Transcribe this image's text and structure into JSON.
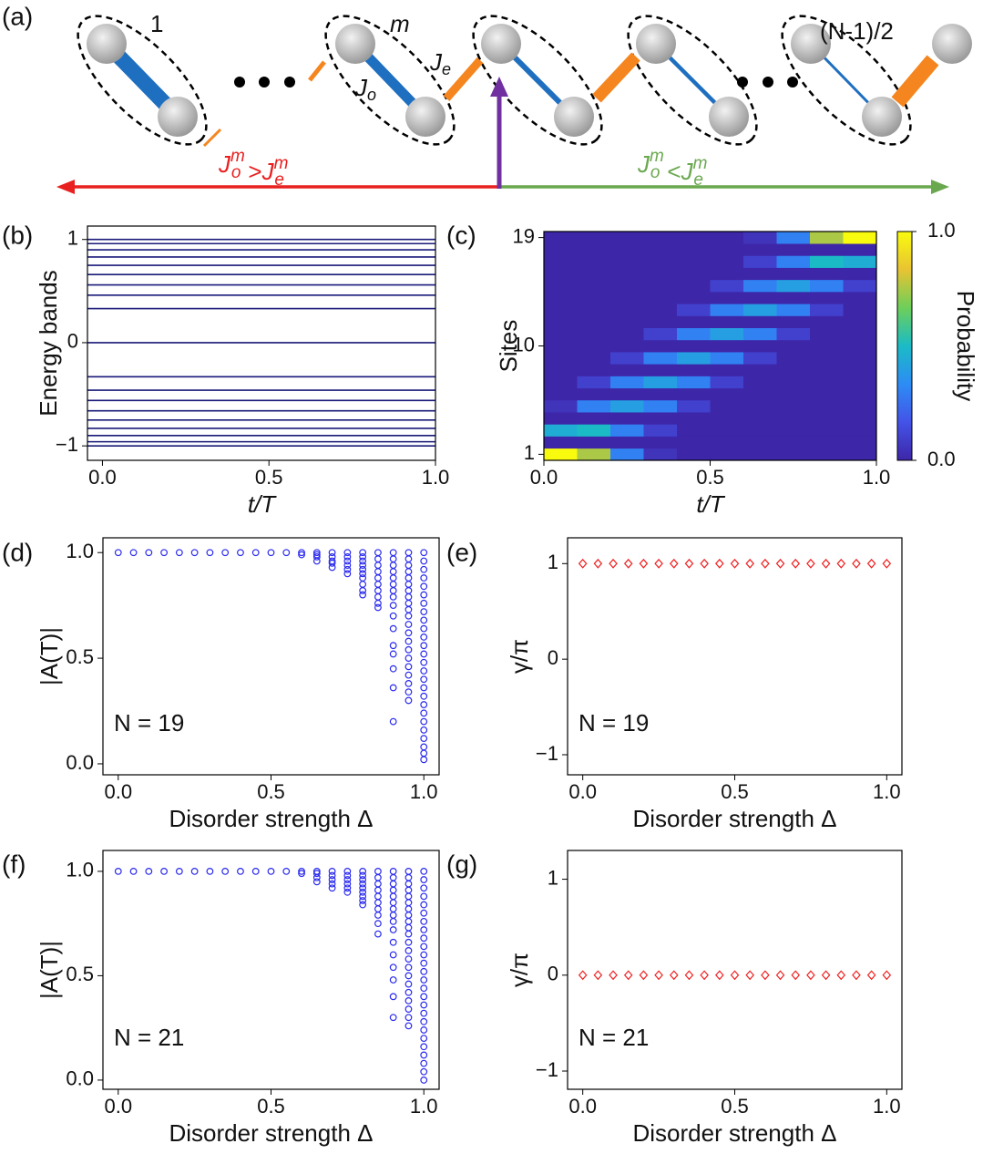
{
  "diagram": {
    "label": "(a)",
    "site_first": "1",
    "site_m": "m",
    "site_last": "(N-1)/2",
    "je": {
      "base": "J",
      "sub": "e"
    },
    "jo": {
      "base": "J",
      "sub": "o"
    },
    "relations": [
      {
        "left": {
          "base": "J",
          "sup": "m",
          "sub": "o"
        },
        "op": ">",
        "right": {
          "base": "J",
          "sup": "m",
          "sub": "e"
        },
        "color": "#e8201f"
      },
      {
        "left": {
          "base": "J",
          "sup": "m",
          "sub": "o"
        },
        "op": "<",
        "right": {
          "base": "J",
          "sup": "m",
          "sub": "e"
        },
        "color": "#6aa84f"
      }
    ]
  },
  "chart_data": [
    {
      "type": "hline",
      "label": "(b)",
      "xlabel": "t/T",
      "ylabel": "Energy bands",
      "color": "#1a1a7a",
      "values": [
        1.0,
        0.96,
        0.9,
        0.83,
        0.75,
        0.66,
        0.56,
        0.46,
        0.33,
        0,
        -0.33,
        -0.46,
        -0.56,
        -0.66,
        -0.75,
        -0.83,
        -0.9,
        -0.96,
        -1.0
      ],
      "xlim": [
        -0.045,
        1.0
      ],
      "xticks": [
        {
          "value": 0,
          "label": "0.0"
        },
        {
          "value": 0.5,
          "label": "0.5"
        },
        {
          "value": 1,
          "label": "1.0"
        }
      ],
      "ylim": [
        -1.14,
        1.13
      ],
      "yticks": [
        {
          "value": -1,
          "label": "−1"
        },
        0,
        1
      ]
    },
    {
      "type": "heatmap",
      "label": "(c)",
      "xlabel": "t/T",
      "ylabel": "Sites",
      "clabel": "Probability",
      "colormap": [
        "#3e26a8",
        "#4353e8",
        "#2d8cf5",
        "#1bbbc6",
        "#6dcf5a",
        "#e8c332",
        "#f9fb0e"
      ],
      "clim": [
        0,
        1
      ],
      "cticks": [
        {
          "value": 0,
          "label": "0.0"
        },
        {
          "value": 1,
          "label": "1.0"
        }
      ],
      "xlim": [
        0,
        1
      ],
      "xticks": [
        {
          "value": 0,
          "label": "0.0"
        },
        {
          "value": 0.5,
          "label": "0.5"
        },
        {
          "value": 1,
          "label": "1.0"
        }
      ],
      "ylim": [
        0.5,
        19.5
      ],
      "yticks": [
        1,
        10,
        19
      ],
      "z": [
        [
          1.0,
          0.75,
          0.3,
          0.05,
          0,
          0,
          0,
          0,
          0,
          0
        ],
        [
          0,
          0,
          0,
          0,
          0,
          0,
          0,
          0,
          0,
          0
        ],
        [
          0.45,
          0.5,
          0.3,
          0.1,
          0,
          0,
          0,
          0,
          0,
          0
        ],
        [
          0,
          0,
          0,
          0,
          0,
          0,
          0,
          0,
          0,
          0
        ],
        [
          0.05,
          0.3,
          0.4,
          0.3,
          0.1,
          0,
          0,
          0,
          0,
          0
        ],
        [
          0,
          0,
          0,
          0,
          0,
          0,
          0,
          0,
          0,
          0
        ],
        [
          0,
          0.1,
          0.3,
          0.4,
          0.3,
          0.1,
          0,
          0,
          0,
          0
        ],
        [
          0,
          0,
          0,
          0,
          0,
          0,
          0,
          0,
          0,
          0
        ],
        [
          0,
          0,
          0.1,
          0.3,
          0.4,
          0.3,
          0.1,
          0,
          0,
          0
        ],
        [
          0,
          0,
          0,
          0,
          0,
          0,
          0,
          0,
          0,
          0
        ],
        [
          0,
          0,
          0,
          0.1,
          0.3,
          0.4,
          0.3,
          0.1,
          0,
          0
        ],
        [
          0,
          0,
          0,
          0,
          0,
          0,
          0,
          0,
          0,
          0
        ],
        [
          0,
          0,
          0,
          0,
          0.1,
          0.3,
          0.4,
          0.3,
          0.1,
          0
        ],
        [
          0,
          0,
          0,
          0,
          0,
          0,
          0,
          0,
          0,
          0
        ],
        [
          0,
          0,
          0,
          0,
          0,
          0.1,
          0.3,
          0.4,
          0.3,
          0.1
        ],
        [
          0,
          0,
          0,
          0,
          0,
          0,
          0,
          0,
          0,
          0
        ],
        [
          0,
          0,
          0,
          0,
          0,
          0,
          0.1,
          0.3,
          0.5,
          0.45
        ],
        [
          0,
          0,
          0,
          0,
          0,
          0,
          0,
          0,
          0,
          0
        ],
        [
          0,
          0,
          0,
          0,
          0,
          0,
          0.05,
          0.3,
          0.75,
          1.0
        ]
      ]
    },
    {
      "type": "scatter",
      "label": "(d)",
      "xlabel": "Disorder strength Δ",
      "ylabel": "|A(T)|",
      "annotation": "N = 19",
      "marker": "circle",
      "color": "#2a2aee",
      "x": [
        0,
        0.05,
        0.1,
        0.15,
        0.2,
        0.25,
        0.3,
        0.35,
        0.4,
        0.45,
        0.5,
        0.55,
        0.6,
        0.65,
        0.7,
        0.75,
        0.8,
        0.85,
        0.9,
        0.95,
        1.0
      ],
      "values": [
        [
          1.0
        ],
        [
          1.0
        ],
        [
          1.0
        ],
        [
          1.0
        ],
        [
          1.0
        ],
        [
          1.0
        ],
        [
          1.0
        ],
        [
          1.0
        ],
        [
          1.0
        ],
        [
          1.0
        ],
        [
          1.0
        ],
        [
          1.0
        ],
        [
          1.0,
          0.99
        ],
        [
          1.0,
          0.99,
          0.98,
          0.96
        ],
        [
          1.0,
          0.98,
          0.96,
          0.95,
          0.93
        ],
        [
          1.0,
          0.98,
          0.96,
          0.94,
          0.92,
          0.9
        ],
        [
          1.0,
          0.98,
          0.96,
          0.94,
          0.92,
          0.9,
          0.88,
          0.85,
          0.82,
          0.8
        ],
        [
          1.0,
          0.97,
          0.94,
          0.91,
          0.88,
          0.85,
          0.82,
          0.79,
          0.76,
          0.74
        ],
        [
          1.0,
          0.97,
          0.94,
          0.91,
          0.88,
          0.85,
          0.82,
          0.79,
          0.75,
          0.7,
          0.64,
          0.56,
          0.52,
          0.45,
          0.36,
          0.2
        ],
        [
          1.0,
          0.97,
          0.94,
          0.91,
          0.88,
          0.85,
          0.82,
          0.79,
          0.76,
          0.73,
          0.7,
          0.66,
          0.62,
          0.58,
          0.54,
          0.5,
          0.46,
          0.42,
          0.38,
          0.34,
          0.3
        ],
        [
          1.0,
          0.96,
          0.92,
          0.88,
          0.84,
          0.8,
          0.76,
          0.72,
          0.68,
          0.64,
          0.6,
          0.56,
          0.52,
          0.48,
          0.44,
          0.4,
          0.36,
          0.32,
          0.28,
          0.24,
          0.2,
          0.16,
          0.12,
          0.08,
          0.05,
          0.02
        ]
      ],
      "xlim": [
        -0.05,
        1.05
      ],
      "xticks": [
        {
          "value": 0,
          "label": "0.0"
        },
        {
          "value": 0.5,
          "label": "0.5"
        },
        {
          "value": 1,
          "label": "1.0"
        }
      ],
      "ylim": [
        -0.052,
        1.07
      ],
      "yticks": [
        {
          "value": 0,
          "label": "0.0"
        },
        {
          "value": 0.5,
          "label": "0.5"
        },
        {
          "value": 1,
          "label": "1.0"
        }
      ]
    },
    {
      "type": "scatter",
      "label": "(e)",
      "xlabel": "Disorder strength Δ",
      "ylabel": "γ/π",
      "annotation": "N = 19",
      "marker": "diamond",
      "color": "#ee2222",
      "x": [
        0,
        0.05,
        0.1,
        0.15,
        0.2,
        0.25,
        0.3,
        0.35,
        0.4,
        0.45,
        0.5,
        0.55,
        0.6,
        0.65,
        0.7,
        0.75,
        0.8,
        0.85,
        0.9,
        0.95,
        1.0
      ],
      "values": [
        1,
        1,
        1,
        1,
        1,
        1,
        1,
        1,
        1,
        1,
        1,
        1,
        1,
        1,
        1,
        1,
        1,
        1,
        1,
        1,
        1
      ],
      "xlim": [
        -0.05,
        1.05
      ],
      "xticks": [
        {
          "value": 0,
          "label": "0.0"
        },
        {
          "value": 0.5,
          "label": "0.5"
        },
        {
          "value": 1,
          "label": "1.0"
        }
      ],
      "ylim": [
        -1.21,
        1.27
      ],
      "yticks": [
        {
          "value": -1,
          "label": "−1"
        },
        0,
        1
      ]
    },
    {
      "type": "scatter",
      "label": "(f)",
      "xlabel": "Disorder strength Δ",
      "ylabel": "|A(T)|",
      "annotation": "N = 21",
      "marker": "circle",
      "color": "#2a2aee",
      "x": [
        0,
        0.05,
        0.1,
        0.15,
        0.2,
        0.25,
        0.3,
        0.35,
        0.4,
        0.45,
        0.5,
        0.55,
        0.6,
        0.65,
        0.7,
        0.75,
        0.8,
        0.85,
        0.9,
        0.95,
        1.0
      ],
      "values": [
        [
          1.0
        ],
        [
          1.0
        ],
        [
          1.0
        ],
        [
          1.0
        ],
        [
          1.0
        ],
        [
          1.0
        ],
        [
          1.0
        ],
        [
          1.0
        ],
        [
          1.0
        ],
        [
          1.0
        ],
        [
          1.0
        ],
        [
          1.0
        ],
        [
          1.0,
          0.99
        ],
        [
          1.0,
          0.99,
          0.97,
          0.95
        ],
        [
          1.0,
          0.98,
          0.96,
          0.94,
          0.92
        ],
        [
          1.0,
          0.98,
          0.96,
          0.94,
          0.92,
          0.9
        ],
        [
          1.0,
          0.98,
          0.96,
          0.94,
          0.92,
          0.9,
          0.88,
          0.86,
          0.84
        ],
        [
          1.0,
          0.97,
          0.94,
          0.91,
          0.88,
          0.85,
          0.82,
          0.79,
          0.75,
          0.7
        ],
        [
          1.0,
          0.97,
          0.94,
          0.91,
          0.88,
          0.85,
          0.82,
          0.79,
          0.76,
          0.72,
          0.66,
          0.6,
          0.54,
          0.48,
          0.4,
          0.3
        ],
        [
          1.0,
          0.97,
          0.94,
          0.91,
          0.88,
          0.85,
          0.82,
          0.79,
          0.76,
          0.73,
          0.7,
          0.66,
          0.62,
          0.58,
          0.54,
          0.5,
          0.46,
          0.42,
          0.38,
          0.34,
          0.3,
          0.26
        ],
        [
          1.0,
          0.96,
          0.92,
          0.88,
          0.84,
          0.8,
          0.76,
          0.72,
          0.68,
          0.64,
          0.6,
          0.56,
          0.52,
          0.48,
          0.44,
          0.4,
          0.36,
          0.32,
          0.28,
          0.24,
          0.2,
          0.16,
          0.12,
          0.08,
          0.04,
          0.0
        ]
      ],
      "xlim": [
        -0.05,
        1.05
      ],
      "xticks": [
        {
          "value": 0,
          "label": "0.0"
        },
        {
          "value": 0.5,
          "label": "0.5"
        },
        {
          "value": 1,
          "label": "1.0"
        }
      ],
      "ylim": [
        -0.044,
        1.1
      ],
      "yticks": [
        {
          "value": 0,
          "label": "0.0"
        },
        {
          "value": 0.5,
          "label": "0.5"
        },
        {
          "value": 1,
          "label": "1.0"
        }
      ]
    },
    {
      "type": "scatter",
      "label": "(g)",
      "xlabel": "Disorder strength Δ",
      "ylabel": "γ/π",
      "annotation": "N = 21",
      "marker": "diamond",
      "color": "#ee2222",
      "x": [
        0,
        0.05,
        0.1,
        0.15,
        0.2,
        0.25,
        0.3,
        0.35,
        0.4,
        0.45,
        0.5,
        0.55,
        0.6,
        0.65,
        0.7,
        0.75,
        0.8,
        0.85,
        0.9,
        0.95,
        1.0
      ],
      "values": [
        0,
        0,
        0,
        0,
        0,
        0,
        0,
        0,
        0,
        0,
        0,
        0,
        0,
        0,
        0,
        0,
        0,
        0,
        0,
        0,
        0
      ],
      "xlim": [
        -0.05,
        1.05
      ],
      "xticks": [
        {
          "value": 0,
          "label": "0.0"
        },
        {
          "value": 0.5,
          "label": "0.5"
        },
        {
          "value": 1,
          "label": "1.0"
        }
      ],
      "ylim": [
        -1.19,
        1.3
      ],
      "yticks": [
        {
          "value": -1,
          "label": "−1"
        },
        0,
        1
      ]
    }
  ]
}
